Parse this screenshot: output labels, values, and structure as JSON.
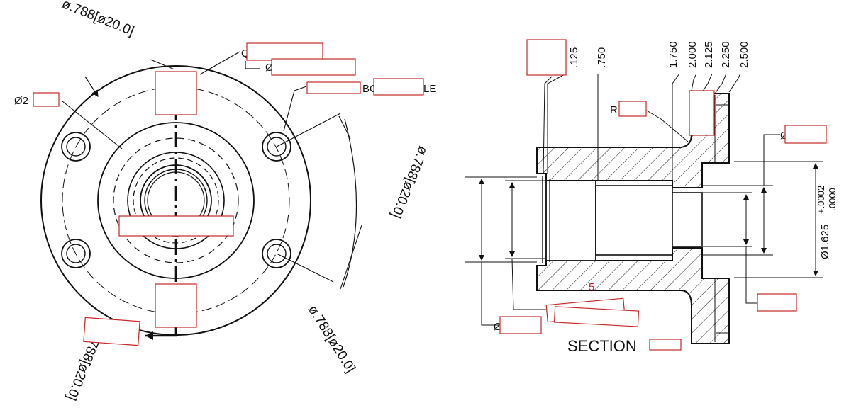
{
  "front_view": {
    "angled_dims": {
      "top_left": "ø.788[ø20.0]",
      "right": "ø.788[ø20.0]",
      "bottom_left": "788[ø20.0]",
      "bottom_right": "ø.788[ø20.0]"
    },
    "hole_dia_prefix": "Ø2",
    "bolt_circle_partial_a": "BO",
    "bolt_circle_partial_b": "LE",
    "callout_prefix_a": "Q",
    "callout_prefix_b": "Ø"
  },
  "section_view": {
    "title": "SECTION",
    "depth_dims": [
      ".125",
      ".750",
      "1.750",
      "2.000",
      "2.125",
      "2.250",
      "2.500"
    ],
    "radius_prefix": "R",
    "dia_prefix_right": "Ø",
    "bore_dim": "Ø1.625",
    "bore_tol_plus": "+.0002",
    "bore_tol_minus": "-.0000",
    "dia_prefix_bottom": "Ø",
    "note_fragment": "5"
  },
  "colors": {
    "line": "#111111",
    "redaction": "#c62828"
  }
}
